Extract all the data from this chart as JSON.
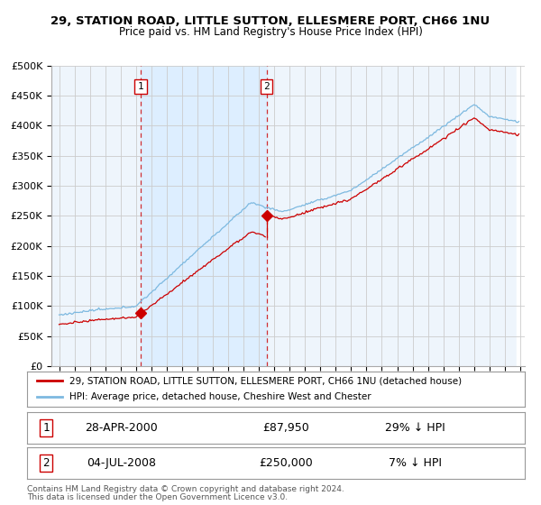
{
  "title1": "29, STATION ROAD, LITTLE SUTTON, ELLESMERE PORT, CH66 1NU",
  "title2": "Price paid vs. HM Land Registry's House Price Index (HPI)",
  "ylabel_ticks": [
    "£0",
    "£50K",
    "£100K",
    "£150K",
    "£200K",
    "£250K",
    "£300K",
    "£350K",
    "£400K",
    "£450K",
    "£500K"
  ],
  "ytick_vals": [
    0,
    50000,
    100000,
    150000,
    200000,
    250000,
    300000,
    350000,
    400000,
    450000,
    500000
  ],
  "ylim": [
    0,
    500000
  ],
  "hpi_color": "#7db9e0",
  "price_color": "#cc0000",
  "vline_color": "#cc0000",
  "shade_color": "#ddeeff",
  "grid_color": "#cccccc",
  "background_color": "#eef5fc",
  "sale1_date_num": 2000.32,
  "sale1_price": 87950,
  "sale1_label": "1",
  "sale2_date_num": 2008.5,
  "sale2_price": 250000,
  "sale2_label": "2",
  "legend_label1": "29, STATION ROAD, LITTLE SUTTON, ELLESMERE PORT, CH66 1NU (detached house)",
  "legend_label2": "HPI: Average price, detached house, Cheshire West and Chester",
  "footer1": "Contains HM Land Registry data © Crown copyright and database right 2024.",
  "footer2": "This data is licensed under the Open Government Licence v3.0.",
  "table_row1": [
    "1",
    "28-APR-2000",
    "£87,950",
    "29% ↓ HPI"
  ],
  "table_row2": [
    "2",
    "04-JUL-2008",
    "£250,000",
    "7% ↓ HPI"
  ],
  "xlim_left": 1994.5,
  "xlim_right": 2025.3
}
